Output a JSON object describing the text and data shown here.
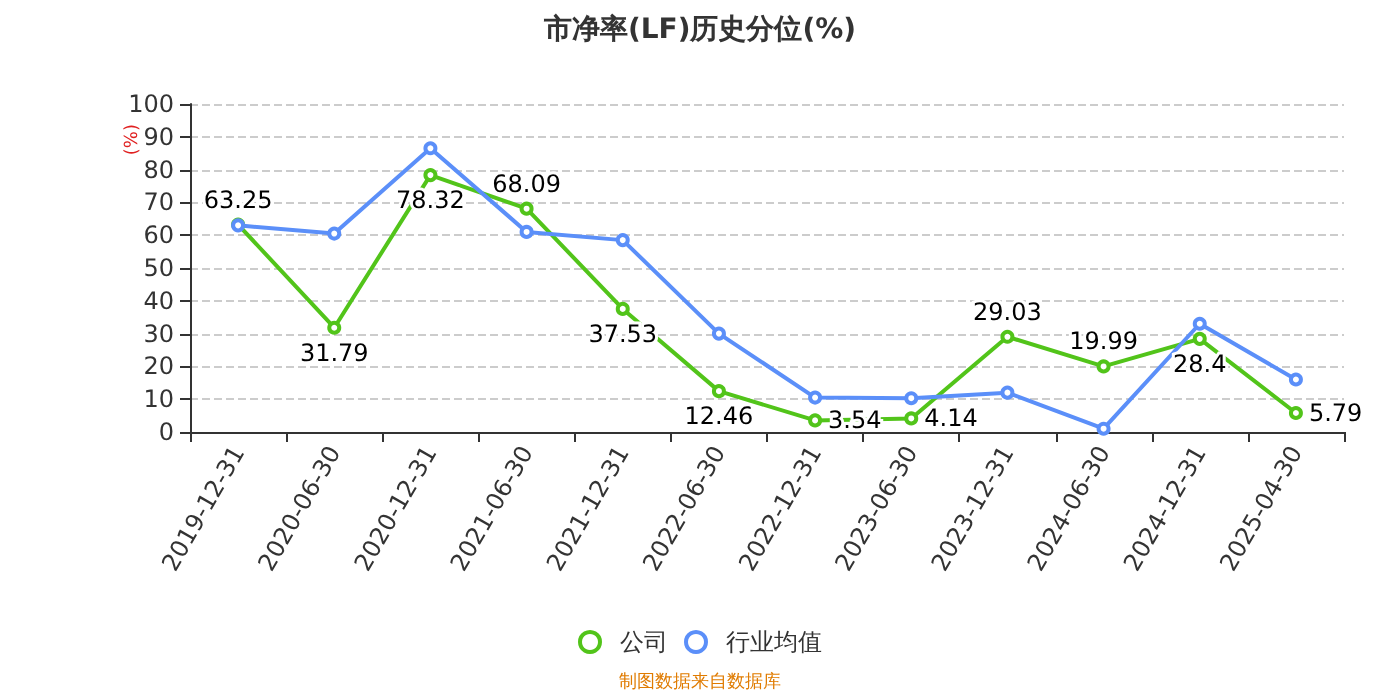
{
  "chart_data": {
    "type": "line",
    "title": "市净率(LF)历史分位(%)",
    "ylabel": "(%)",
    "categories": [
      "2019-12-31",
      "2020-06-30",
      "2020-12-31",
      "2021-06-30",
      "2021-12-31",
      "2022-06-30",
      "2022-12-31",
      "2023-06-30",
      "2023-12-31",
      "2024-06-30",
      "2024-12-31",
      "2025-04-30"
    ],
    "series": [
      {
        "name": "公司",
        "color": "#52c41a",
        "values": [
          63.25,
          31.79,
          78.32,
          68.09,
          37.53,
          12.46,
          3.54,
          4.14,
          29.03,
          19.99,
          28.4,
          5.79
        ],
        "value_labels": [
          "63.25",
          "31.79",
          "78.32",
          "68.09",
          "37.53",
          "12.46",
          "3.54",
          "4.14",
          "29.03",
          "19.99",
          "28.4",
          "5.79"
        ]
      },
      {
        "name": "行业均值",
        "color": "#5b8ff9",
        "values": [
          63,
          60.5,
          86.5,
          61,
          58.5,
          30,
          10.5,
          10.3,
          12,
          1,
          33,
          16
        ]
      }
    ],
    "ylim": [
      0,
      100
    ],
    "yticks": [
      0,
      10,
      20,
      30,
      40,
      50,
      60,
      70,
      80,
      90,
      100
    ],
    "grid": "y",
    "legend": "bottom",
    "marker": "circle",
    "line_style": "solid",
    "annotations": [
      "制图数据来自数据库"
    ]
  }
}
